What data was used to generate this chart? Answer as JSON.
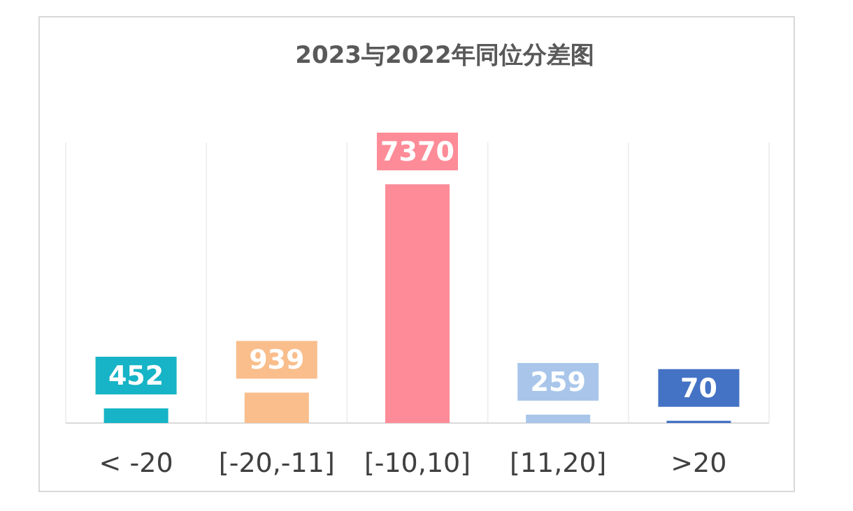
{
  "chart_data": {
    "type": "bar",
    "title": "2023与2022年同位分差图",
    "categories": [
      "< -20",
      "[-20,-11]",
      "[-10,10]",
      "[11,20]",
      ">20"
    ],
    "values": [
      452,
      939,
      7370,
      259,
      70
    ],
    "colors": [
      "#16b4c6",
      "#f9be8c",
      "#fd8c98",
      "#a9c6ea",
      "#4472c4"
    ],
    "data_labels": true,
    "grid": "x"
  }
}
